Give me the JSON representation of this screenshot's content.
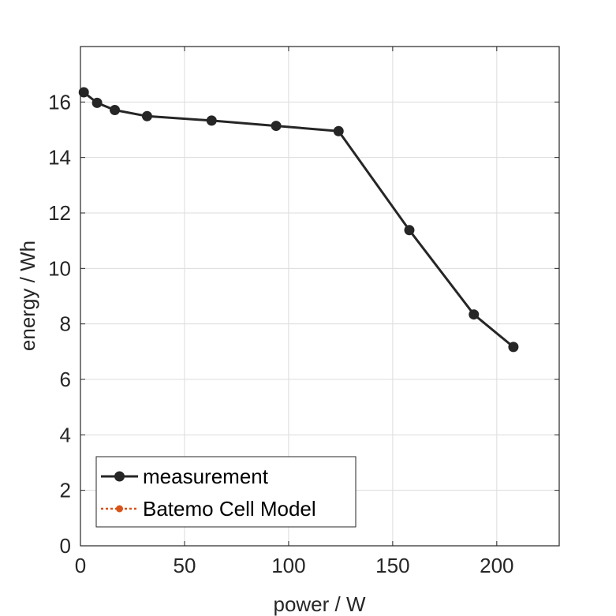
{
  "chart_data": {
    "type": "line",
    "title": "",
    "xlabel": "power / W",
    "ylabel": "energy / Wh",
    "xlim": [
      0,
      230
    ],
    "ylim": [
      0,
      18
    ],
    "xticks": [
      0,
      50,
      100,
      150,
      200
    ],
    "yticks": [
      0,
      2,
      4,
      6,
      8,
      10,
      12,
      14,
      16
    ],
    "grid": true,
    "legend_position": "bottom-left",
    "series": [
      {
        "name": "measurement",
        "color": "#262626",
        "line_style": "solid",
        "marker": "circle",
        "x": [
          1.6,
          8,
          16.5,
          32,
          63,
          94,
          124,
          158,
          189,
          208
        ],
        "y": [
          16.35,
          15.97,
          15.71,
          15.49,
          15.33,
          15.14,
          14.95,
          11.38,
          8.34,
          7.17
        ]
      },
      {
        "name": "Batemo Cell Model",
        "color": "#d95319",
        "line_style": "dotted",
        "marker": "circle",
        "x": [],
        "y": []
      }
    ]
  }
}
